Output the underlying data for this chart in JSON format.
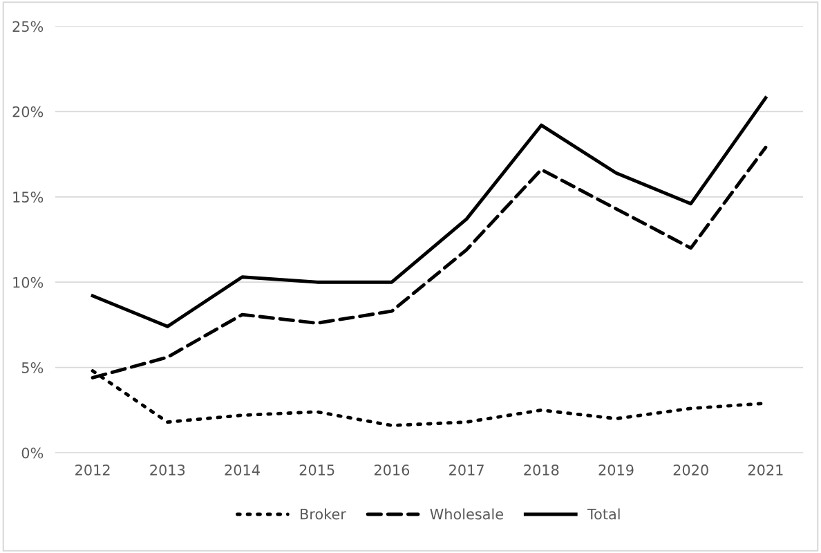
{
  "chart_data": {
    "type": "line",
    "categories": [
      "2012",
      "2013",
      "2014",
      "2015",
      "2016",
      "2017",
      "2018",
      "2019",
      "2020",
      "2021"
    ],
    "series": [
      {
        "name": "Broker",
        "color": "#000000",
        "line_style": "dotted",
        "values": [
          4.8,
          1.8,
          2.2,
          2.4,
          1.6,
          1.8,
          2.5,
          2.0,
          2.6,
          2.9
        ]
      },
      {
        "name": "Wholesale",
        "color": "#000000",
        "line_style": "dashed",
        "values": [
          4.4,
          5.6,
          8.1,
          7.6,
          8.3,
          11.9,
          16.6,
          14.3,
          12.0,
          17.9
        ]
      },
      {
        "name": "Total",
        "color": "#000000",
        "line_style": "solid",
        "values": [
          9.2,
          7.4,
          10.3,
          10.0,
          10.0,
          13.7,
          19.2,
          16.4,
          14.6,
          20.8
        ]
      }
    ],
    "ylim": [
      0,
      25
    ],
    "yticks": [
      {
        "value": 0,
        "label": "0%"
      },
      {
        "value": 5,
        "label": "5%"
      },
      {
        "value": 10,
        "label": "10%"
      },
      {
        "value": 15,
        "label": "15%"
      },
      {
        "value": 20,
        "label": "20%"
      },
      {
        "value": 25,
        "label": "25%"
      }
    ],
    "grid": "y",
    "legend": "bottom",
    "marker": "none"
  }
}
